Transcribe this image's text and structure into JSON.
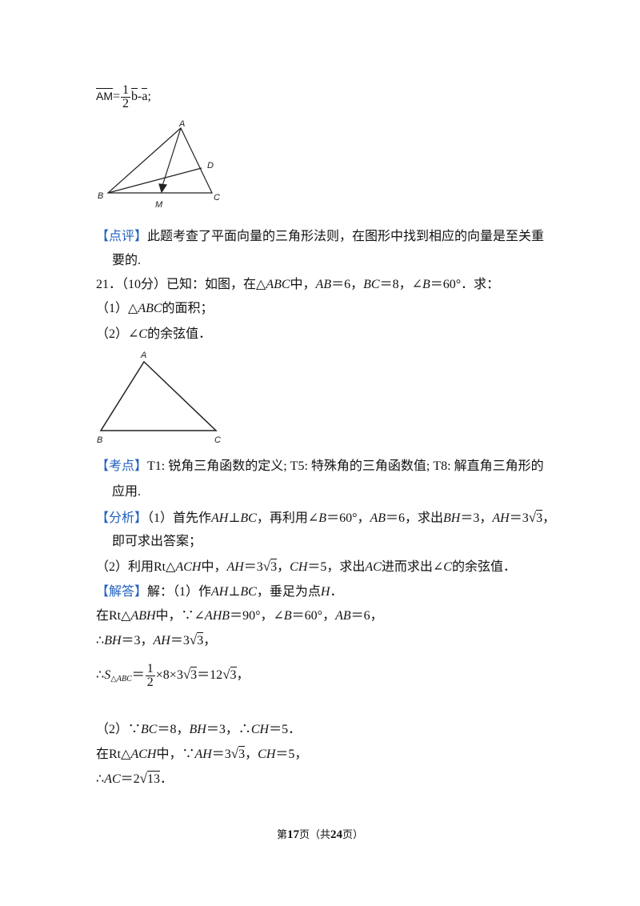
{
  "formula": {
    "lhs": "AM",
    "eq": "=",
    "num": "1",
    "den": "2",
    "b": "b",
    "minus": "-",
    "a": "a",
    "end": ";"
  },
  "figure1": {
    "labels": [
      "A",
      "D",
      "B",
      "M",
      "C"
    ]
  },
  "figure2": {
    "labels": [
      "A",
      "B",
      "C"
    ]
  },
  "lines": [
    [
      "【点评】",
      "此题考查了平面向量的三角形法则，在图形中找到相应的向量是至关重"
    ],
    [
      "要的."
    ],
    [
      "21．（10分）已知：如图，在△",
      "ABC",
      "中，",
      "AB",
      "＝6，",
      "BC",
      "＝8，∠",
      "B",
      "＝60°．求："
    ],
    [
      "（1）△",
      "ABC",
      "的面积；"
    ],
    [
      "（2）∠",
      "C",
      "的余弦值．"
    ],
    [
      "【考点】",
      "T1: 锐角三角函数的定义; T5: 特殊角的三角函数值; T8: 解直角三角形的"
    ],
    [
      "应用."
    ],
    [
      "【分析】",
      "（1）首先作",
      "AH",
      "⊥",
      "BC",
      "，再利用∠",
      "B",
      "＝60°，",
      "AB",
      "＝6，求出",
      "BH",
      "＝3，",
      "AH",
      "＝3",
      "√",
      "3",
      "，"
    ],
    [
      "即可求出答案；"
    ],
    [
      "（2）利用Rt△",
      "ACH",
      "中，",
      "AH",
      "＝3",
      "√",
      "3",
      "，",
      "CH",
      "＝5，求出",
      "AC",
      "进而求出∠",
      "C",
      "的余弦值．"
    ],
    [
      "【解答】",
      "解：（1）作",
      "AH",
      "⊥",
      "BC",
      "，垂足为点",
      "H",
      "．"
    ],
    [
      "在Rt△",
      "ABH",
      "中，∵∠",
      "AHB",
      "＝90°，∠",
      "B",
      "＝60°，",
      "AB",
      "＝6，"
    ],
    [
      "∴",
      "BH",
      "＝3，",
      "AH",
      "＝3",
      "√",
      "3",
      "，"
    ],
    [
      "（2）∵",
      "BC",
      "＝8，",
      "BH",
      "＝3，∴",
      "CH",
      "＝5．"
    ],
    [
      "在Rt△",
      "ACH",
      "中，∵",
      "AH",
      "＝3",
      "√",
      "3",
      "，",
      "CH",
      "＝5，"
    ],
    [
      "∴",
      "AC",
      "＝2",
      "√",
      "13",
      "．"
    ]
  ],
  "area": {
    "pre": "∴",
    "s": "S",
    "sub": "△ABC",
    "eq": "＝",
    "num": "1",
    "den": "2",
    "post": [
      "×8×3",
      "√",
      "3",
      "＝12",
      "√",
      "3",
      "，"
    ]
  },
  "footer": [
    "第",
    "17",
    "页（共",
    "24",
    "页）"
  ]
}
